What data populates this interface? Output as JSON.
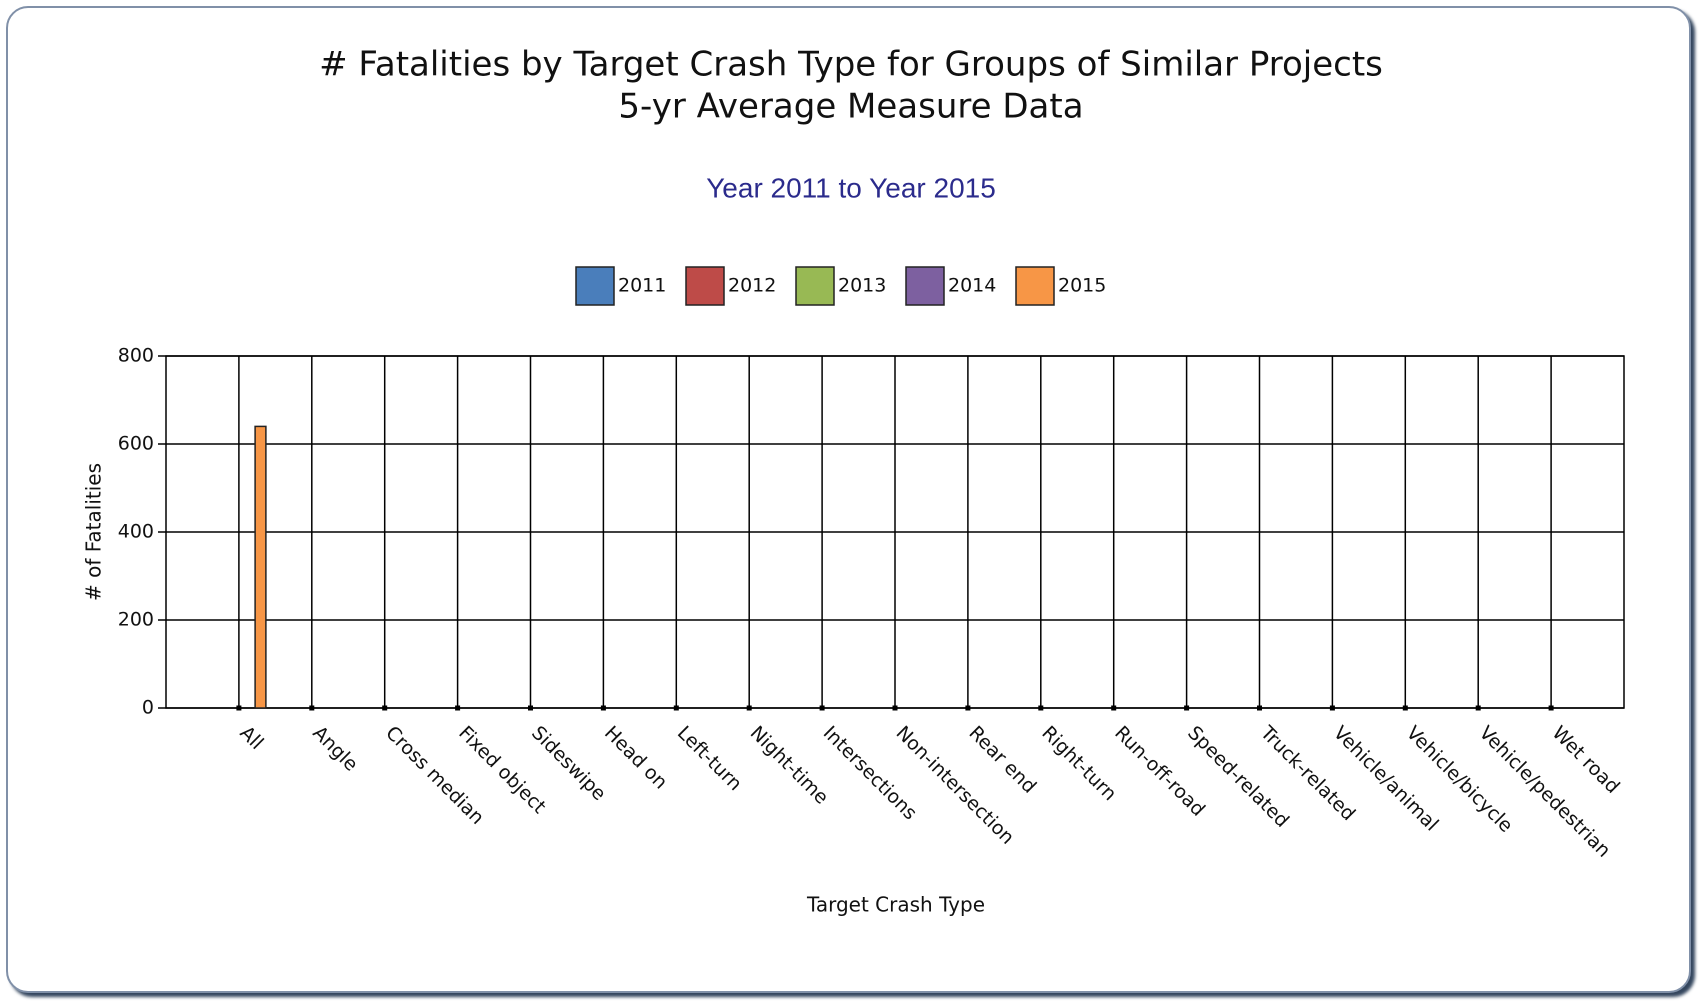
{
  "chart_data": {
    "type": "bar",
    "title": [
      "# Fatalities by Target Crash Type for Groups of Similar Projects",
      "5-yr Average Measure Data"
    ],
    "subtitle": "Year 2011 to Year 2015",
    "x_label": "Target Crash Type",
    "y_label": "# of Fatalities",
    "categories": [
      "All",
      "Angle",
      "Cross median",
      "Fixed object",
      "Sideswipe",
      "Head on",
      "Left-turn",
      "Night-time",
      "Intersections",
      "Non-intersection",
      "Rear end",
      "Right-turn",
      "Run-off-road",
      "Speed-related",
      "Truck-related",
      "Vehicle/animal",
      "Vehicle/bicycle",
      "Vehicle/pedestrian",
      "Wet road"
    ],
    "series": [
      {
        "name": "2011",
        "color": "#4a7ebb",
        "values": [
          null,
          null,
          null,
          null,
          null,
          null,
          null,
          null,
          null,
          null,
          null,
          null,
          null,
          null,
          null,
          null,
          null,
          null,
          null
        ]
      },
      {
        "name": "2012",
        "color": "#be4b48",
        "values": [
          null,
          null,
          null,
          null,
          null,
          null,
          null,
          null,
          null,
          null,
          null,
          null,
          null,
          null,
          null,
          null,
          null,
          null,
          null
        ]
      },
      {
        "name": "2013",
        "color": "#98b954",
        "values": [
          null,
          null,
          null,
          null,
          null,
          null,
          null,
          null,
          null,
          null,
          null,
          null,
          null,
          null,
          null,
          null,
          null,
          null,
          null
        ]
      },
      {
        "name": "2014",
        "color": "#7d60a0",
        "values": [
          null,
          null,
          null,
          null,
          null,
          null,
          null,
          null,
          null,
          null,
          null,
          null,
          null,
          null,
          null,
          null,
          null,
          null,
          null
        ]
      },
      {
        "name": "2015",
        "color": "#f79646",
        "values": [
          640,
          null,
          null,
          null,
          null,
          null,
          null,
          null,
          null,
          null,
          null,
          null,
          null,
          null,
          null,
          null,
          null,
          null,
          null
        ]
      }
    ],
    "ylim": [
      0,
      800
    ],
    "yticks": [
      0,
      200,
      400,
      600,
      800
    ],
    "grid": true,
    "legend": "top"
  }
}
